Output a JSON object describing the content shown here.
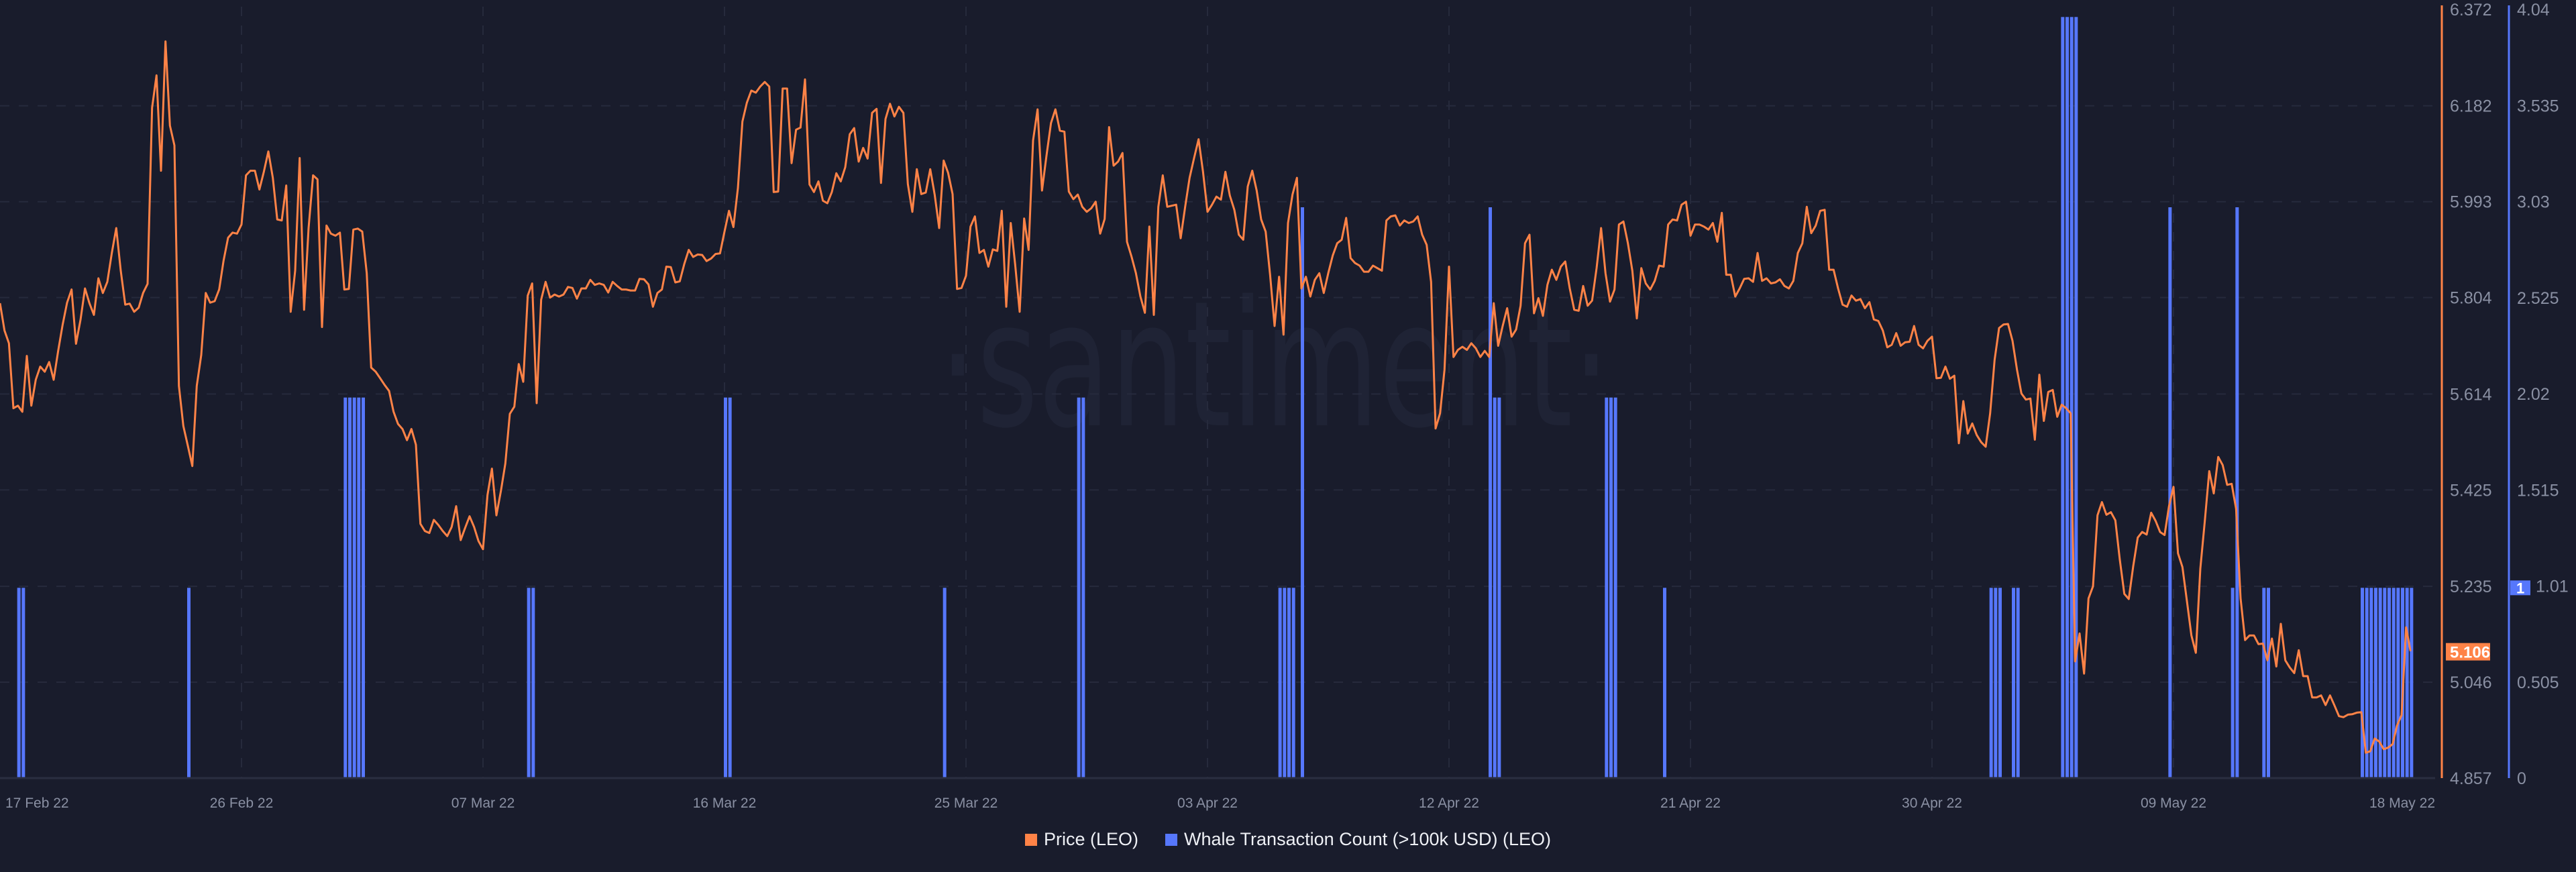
{
  "chart_data": {
    "type": "line+bar",
    "title": "",
    "watermark": "·santiment·",
    "x_axis": {
      "type": "time",
      "range": [
        "2022-02-17 00:00",
        "2022-05-18 18:00"
      ],
      "tick_labels": [
        "17 Feb 22",
        "26 Feb 22",
        "07 Mar 22",
        "16 Mar 22",
        "25 Mar 22",
        "03 Apr 22",
        "12 Apr 22",
        "21 Apr 22",
        "30 Apr 22",
        "09 May 22",
        "18 May 22"
      ],
      "grid": true
    },
    "y_axis_left_price": {
      "range": [
        4.857,
        6.372
      ],
      "tick_labels": [
        "6.372",
        "6.182",
        "5.993",
        "5.804",
        "5.614",
        "5.425",
        "5.235",
        "5.046",
        "4.857"
      ],
      "grid": true,
      "position": "right",
      "color": "#ff8347"
    },
    "y_axis_whale": {
      "range": [
        0,
        4.04
      ],
      "tick_labels": [
        "4.04",
        "3.535",
        "3.03",
        "2.525",
        "2.02",
        "1.515",
        "1.01",
        "0.505",
        "0"
      ],
      "position": "right",
      "color": "#5677fc"
    },
    "current_price_label": "5.106",
    "current_whale_label": "1",
    "series": [
      {
        "name": "Price (LEO)",
        "type": "line",
        "color": "#ff8347",
        "start": "2022-02-17 00:00",
        "step_hours": 4,
        "values": [
          5.793,
          5.739,
          5.714,
          5.586,
          5.591,
          5.579,
          5.689,
          5.591,
          5.642,
          5.668,
          5.658,
          5.677,
          5.642,
          5.699,
          5.75,
          5.794,
          5.82,
          5.713,
          5.76,
          5.822,
          5.793,
          5.77,
          5.842,
          5.813,
          5.835,
          5.892,
          5.941,
          5.857,
          5.79,
          5.792,
          5.776,
          5.784,
          5.813,
          5.831,
          6.178,
          6.242,
          6.054,
          6.309,
          6.143,
          6.104,
          5.63,
          5.551,
          5.512,
          5.472,
          5.63,
          5.691,
          5.813,
          5.794,
          5.797,
          5.82,
          5.877,
          5.922,
          5.932,
          5.93,
          5.948,
          6.045,
          6.054,
          6.054,
          6.017,
          6.052,
          6.092,
          6.04,
          5.958,
          5.956,
          6.025,
          5.776,
          5.857,
          6.079,
          5.78,
          5.941,
          6.045,
          6.037,
          5.746,
          5.946,
          5.93,
          5.926,
          5.932,
          5.82,
          5.821,
          5.938,
          5.94,
          5.934,
          5.852,
          5.666,
          5.658,
          5.645,
          5.632,
          5.62,
          5.579,
          5.555,
          5.545,
          5.523,
          5.545,
          5.514,
          5.358,
          5.344,
          5.34,
          5.366,
          5.356,
          5.344,
          5.334,
          5.352,
          5.393,
          5.326,
          5.35,
          5.373,
          5.352,
          5.324,
          5.308,
          5.415,
          5.467,
          5.375,
          5.423,
          5.477,
          5.575,
          5.589,
          5.673,
          5.638,
          5.808,
          5.832,
          5.596,
          5.8,
          5.835,
          5.804,
          5.81,
          5.806,
          5.81,
          5.825,
          5.823,
          5.802,
          5.822,
          5.822,
          5.839,
          5.829,
          5.832,
          5.829,
          5.814,
          5.835,
          5.827,
          5.82,
          5.82,
          5.818,
          5.818,
          5.841,
          5.84,
          5.83,
          5.786,
          5.813,
          5.82,
          5.865,
          5.864,
          5.834,
          5.836,
          5.87,
          5.898,
          5.884,
          5.889,
          5.888,
          5.876,
          5.881,
          5.89,
          5.891,
          5.934,
          5.975,
          5.943,
          6.02,
          6.151,
          6.188,
          6.212,
          6.208,
          6.22,
          6.229,
          6.22,
          6.012,
          6.013,
          6.216,
          6.216,
          6.069,
          6.135,
          6.139,
          6.234,
          6.027,
          6.012,
          6.033,
          5.995,
          5.99,
          6.012,
          6.049,
          6.033,
          6.061,
          6.126,
          6.138,
          6.072,
          6.099,
          6.078,
          6.168,
          6.176,
          6.03,
          6.156,
          6.186,
          6.161,
          6.18,
          6.168,
          6.028,
          5.973,
          6.057,
          6.008,
          6.011,
          6.057,
          6.007,
          5.941,
          6.074,
          6.05,
          6.008,
          5.821,
          5.823,
          5.847,
          5.944,
          5.964,
          5.892,
          5.898,
          5.865,
          5.899,
          5.896,
          5.975,
          5.786,
          5.951,
          5.869,
          5.776,
          5.96,
          5.898,
          6.114,
          6.175,
          6.015,
          6.084,
          6.148,
          6.175,
          6.133,
          6.131,
          6.013,
          5.998,
          6.007,
          5.983,
          5.973,
          5.98,
          5.993,
          5.93,
          5.959,
          6.14,
          6.064,
          6.072,
          6.089,
          5.914,
          5.885,
          5.852,
          5.806,
          5.774,
          5.944,
          5.77,
          5.983,
          6.045,
          5.983,
          5.985,
          5.987,
          5.921,
          5.983,
          6.04,
          6.079,
          6.116,
          6.052,
          5.973,
          5.987,
          6.003,
          5.997,
          6.052,
          6.005,
          5.977,
          5.928,
          5.918,
          6.023,
          6.054,
          6.015,
          5.958,
          5.934,
          5.849,
          5.748,
          5.845,
          5.731,
          5.951,
          6.007,
          6.04,
          5.822,
          5.845,
          5.806,
          5.839,
          5.852,
          5.813,
          5.852,
          5.887,
          5.911,
          5.918,
          5.961,
          5.882,
          5.872,
          5.867,
          5.855,
          5.855,
          5.867,
          5.862,
          5.857,
          5.956,
          5.964,
          5.966,
          5.946,
          5.956,
          5.951,
          5.954,
          5.964,
          5.928,
          5.908,
          5.835,
          5.546,
          5.576,
          5.662,
          5.865,
          5.687,
          5.701,
          5.707,
          5.701,
          5.714,
          5.704,
          5.687,
          5.699,
          5.687,
          5.793,
          5.709,
          5.748,
          5.783,
          5.727,
          5.741,
          5.788,
          5.911,
          5.928,
          5.773,
          5.803,
          5.768,
          5.829,
          5.859,
          5.839,
          5.865,
          5.875,
          5.822,
          5.78,
          5.778,
          5.827,
          5.788,
          5.798,
          5.862,
          5.941,
          5.852,
          5.796,
          5.82,
          5.948,
          5.954,
          5.911,
          5.857,
          5.763,
          5.862,
          5.832,
          5.82,
          5.837,
          5.867,
          5.865,
          5.948,
          5.958,
          5.956,
          5.987,
          5.993,
          5.926,
          5.948,
          5.948,
          5.944,
          5.938,
          5.951,
          5.914,
          5.971,
          5.849,
          5.849,
          5.806,
          5.822,
          5.841,
          5.842,
          5.835,
          5.892,
          5.837,
          5.842,
          5.832,
          5.834,
          5.84,
          5.827,
          5.822,
          5.837,
          5.892,
          5.911,
          5.983,
          5.931,
          5.946,
          5.975,
          5.977,
          5.859,
          5.859,
          5.822,
          5.79,
          5.786,
          5.808,
          5.798,
          5.801,
          5.783,
          5.795,
          5.761,
          5.758,
          5.739,
          5.706,
          5.711,
          5.734,
          5.709,
          5.716,
          5.717,
          5.748,
          5.711,
          5.704,
          5.719,
          5.727,
          5.645,
          5.646,
          5.668,
          5.644,
          5.65,
          5.517,
          5.6,
          5.536,
          5.556,
          5.533,
          5.519,
          5.51,
          5.576,
          5.681,
          5.744,
          5.751,
          5.752,
          5.719,
          5.662,
          5.615,
          5.603,
          5.605,
          5.524,
          5.652,
          5.561,
          5.618,
          5.622,
          5.569,
          5.593,
          5.586,
          5.576,
          5.087,
          5.142,
          5.063,
          5.211,
          5.235,
          5.375,
          5.401,
          5.376,
          5.381,
          5.365,
          5.287,
          5.22,
          5.21,
          5.275,
          5.331,
          5.342,
          5.337,
          5.38,
          5.364,
          5.342,
          5.336,
          5.393,
          5.431,
          5.3,
          5.273,
          5.206,
          5.138,
          5.104,
          5.27,
          5.364,
          5.462,
          5.418,
          5.49,
          5.474,
          5.435,
          5.437,
          5.388,
          5.211,
          5.129,
          5.138,
          5.138,
          5.121,
          5.122,
          5.089,
          5.132,
          5.077,
          5.161,
          5.089,
          5.075,
          5.064,
          5.109,
          5.058,
          5.058,
          5.016,
          5.016,
          5.02,
          5.001,
          5.02,
          5.0,
          4.979,
          4.977,
          4.982,
          4.983,
          4.986,
          4.987,
          4.907,
          4.91,
          4.935,
          4.929,
          4.914,
          4.917,
          4.924,
          4.961,
          4.981,
          5.154,
          5.107
        ]
      },
      {
        "name": "Whale Transaction Count (>100k USD) (LEO)",
        "type": "bar",
        "color": "#5677fc",
        "points": [
          [
            "2022-02-17 16:00",
            1
          ],
          [
            "2022-02-17 20:00",
            1
          ],
          [
            "2022-02-24 00:00",
            1
          ],
          [
            "2022-03-01 20:00",
            2
          ],
          [
            "2022-03-02 00:00",
            2
          ],
          [
            "2022-03-02 04:00",
            2
          ],
          [
            "2022-03-02 08:00",
            2
          ],
          [
            "2022-03-02 12:00",
            2
          ],
          [
            "2022-03-08 16:00",
            1
          ],
          [
            "2022-03-08 20:00",
            1
          ],
          [
            "2022-03-16 00:00",
            2
          ],
          [
            "2022-03-16 04:00",
            2
          ],
          [
            "2022-03-24 04:00",
            1
          ],
          [
            "2022-03-29 04:00",
            2
          ],
          [
            "2022-03-29 08:00",
            2
          ],
          [
            "2022-04-05 16:00",
            1
          ],
          [
            "2022-04-05 20:00",
            1
          ],
          [
            "2022-04-06 00:00",
            1
          ],
          [
            "2022-04-06 04:00",
            1
          ],
          [
            "2022-04-06 12:00",
            3
          ],
          [
            "2022-04-13 12:00",
            3
          ],
          [
            "2022-04-13 16:00",
            2
          ],
          [
            "2022-04-13 20:00",
            2
          ],
          [
            "2022-04-17 20:00",
            2
          ],
          [
            "2022-04-18 00:00",
            2
          ],
          [
            "2022-04-18 04:00",
            2
          ],
          [
            "2022-04-20 00:00",
            1
          ],
          [
            "2022-05-02 04:00",
            1
          ],
          [
            "2022-05-02 08:00",
            1
          ],
          [
            "2022-05-02 12:00",
            1
          ],
          [
            "2022-05-03 00:00",
            1
          ],
          [
            "2022-05-03 04:00",
            1
          ],
          [
            "2022-05-04 20:00",
            4
          ],
          [
            "2022-05-05 00:00",
            4
          ],
          [
            "2022-05-05 04:00",
            4
          ],
          [
            "2022-05-05 08:00",
            4
          ],
          [
            "2022-05-08 20:00",
            3
          ],
          [
            "2022-05-11 04:00",
            1
          ],
          [
            "2022-05-11 08:00",
            3
          ],
          [
            "2022-05-12 08:00",
            1
          ],
          [
            "2022-05-12 12:00",
            1
          ],
          [
            "2022-05-16 00:00",
            1
          ],
          [
            "2022-05-16 04:00",
            1
          ],
          [
            "2022-05-16 08:00",
            1
          ],
          [
            "2022-05-16 12:00",
            1
          ],
          [
            "2022-05-16 16:00",
            1
          ],
          [
            "2022-05-16 20:00",
            1
          ],
          [
            "2022-05-17 00:00",
            1
          ],
          [
            "2022-05-17 04:00",
            1
          ],
          [
            "2022-05-17 08:00",
            1
          ],
          [
            "2022-05-17 12:00",
            1
          ],
          [
            "2022-05-17 16:00",
            1
          ],
          [
            "2022-05-17 20:00",
            1
          ]
        ]
      }
    ],
    "legend": {
      "position": "bottom",
      "items": [
        {
          "label": "Price (LEO)",
          "color": "#ff8347"
        },
        {
          "label": "Whale Transaction Count (>100k USD) (LEO)",
          "color": "#5677fc"
        }
      ]
    }
  }
}
